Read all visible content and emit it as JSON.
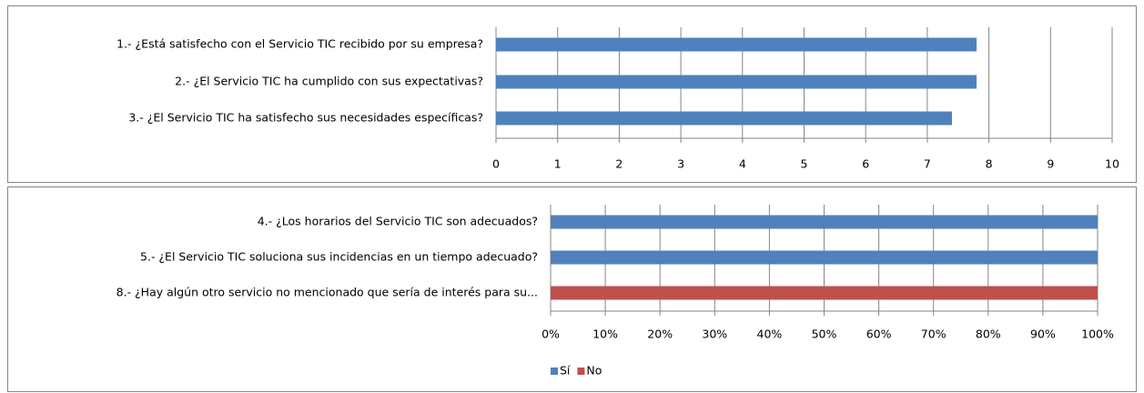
{
  "chart_data": [
    {
      "type": "hbar",
      "categories": [
        "1.- ¿Está satisfecho con el Servicio TIC recibido por su empresa?",
        "2.- ¿El Servicio TIC ha cumplido con sus expectativas?",
        "3.- ¿El Servicio TIC ha satisfecho sus necesidades específicas?"
      ],
      "values": [
        7.8,
        7.8,
        7.4
      ],
      "color": "#4f81bd",
      "xlim": [
        0,
        10
      ],
      "xticks": [
        0,
        1,
        2,
        3,
        4,
        5,
        6,
        7,
        8,
        9,
        10
      ],
      "grid": true
    },
    {
      "type": "stacked_hbar",
      "categories": [
        "4.- ¿Los horarios del Servicio TIC son adecuados?",
        "5.- ¿El Servicio TIC soluciona sus incidencias en un tiempo adecuado?",
        "8.- ¿Hay algún otro servicio no mencionado que sería de interés para su..."
      ],
      "series": [
        {
          "name": "Sí",
          "color": "#4f81bd",
          "values": [
            100,
            100,
            0
          ]
        },
        {
          "name": "No",
          "color": "#c0504d",
          "values": [
            0,
            0,
            100
          ]
        }
      ],
      "xlim": [
        0,
        100
      ],
      "xticks": [
        {
          "value": 0,
          "label": "0%"
        },
        {
          "value": 10,
          "label": "10%"
        },
        {
          "value": 20,
          "label": "20%"
        },
        {
          "value": 30,
          "label": "30%"
        },
        {
          "value": 40,
          "label": "40%"
        },
        {
          "value": 50,
          "label": "50%"
        },
        {
          "value": 60,
          "label": "60%"
        },
        {
          "value": 70,
          "label": "70%"
        },
        {
          "value": 80,
          "label": "80%"
        },
        {
          "value": 90,
          "label": "90%"
        },
        {
          "value": 100,
          "label": "100%"
        }
      ],
      "grid": true,
      "legend": "bottom"
    }
  ]
}
